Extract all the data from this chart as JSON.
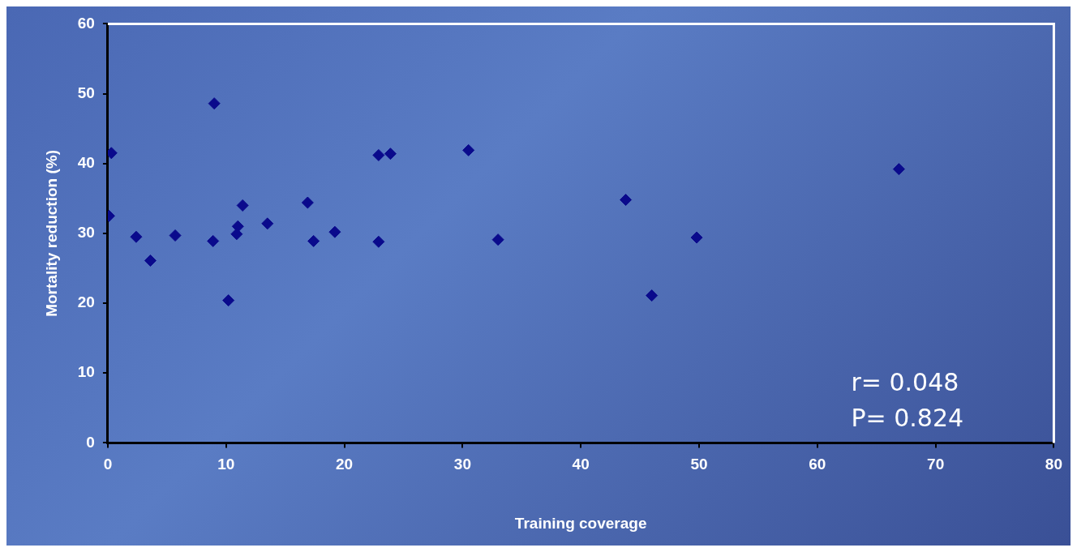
{
  "chart_data": {
    "type": "scatter",
    "xlabel": "Training coverage",
    "ylabel": "Mortality reduction (%)",
    "x": [
      0.3,
      9.0,
      0.1,
      2.4,
      3.6,
      5.7,
      8.9,
      10.2,
      11.4,
      11.0,
      10.9,
      13.5,
      16.9,
      17.4,
      19.2,
      22.9,
      23.9,
      30.5,
      22.9,
      33.0,
      43.8,
      49.8,
      46.0,
      66.9
    ],
    "series": [
      {
        "color": "#0a0a8c",
        "values": [
          41.5,
          48.6,
          32.5,
          29.5,
          26.1,
          29.7,
          28.9,
          20.4,
          34.0,
          31.0,
          29.9,
          31.4,
          34.4,
          28.9,
          30.2,
          41.2,
          41.4,
          41.9,
          28.8,
          29.1,
          34.8,
          29.4,
          21.1,
          39.2
        ]
      }
    ],
    "xlim": [
      0,
      80
    ],
    "xticks": [
      0,
      10,
      20,
      30,
      40,
      50,
      60,
      70,
      80
    ],
    "ylim": [
      0,
      60
    ],
    "yticks": [
      0,
      10,
      20,
      30,
      40,
      50,
      60
    ],
    "marker": "diamond",
    "grid": false,
    "legend": false,
    "annotations": [
      "r= 0.048",
      "P= 0.824"
    ]
  }
}
